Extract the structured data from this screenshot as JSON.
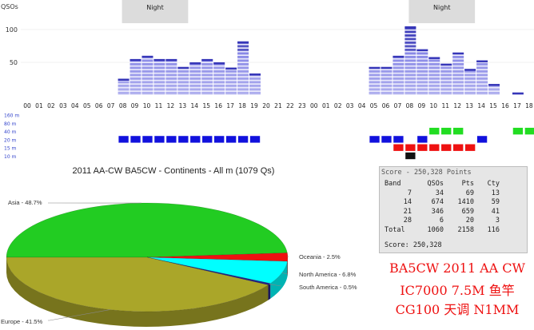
{
  "chart_data": [
    {
      "type": "bar",
      "ylabel": "QSOs",
      "yticks": [
        50,
        100
      ],
      "ylim": [
        0,
        110
      ],
      "hours": [
        "00",
        "01",
        "02",
        "03",
        "04",
        "05",
        "06",
        "07",
        "08",
        "09",
        "10",
        "11",
        "12",
        "13",
        "14",
        "15",
        "16",
        "17",
        "18",
        "19",
        "20",
        "21",
        "22",
        "23"
      ],
      "day1_values": [
        0,
        0,
        0,
        0,
        0,
        0,
        0,
        0,
        25,
        55,
        60,
        55,
        55,
        43,
        50,
        55,
        50,
        42,
        82,
        33,
        0,
        0,
        0,
        0
      ],
      "day2_values": [
        0,
        0,
        0,
        0,
        0,
        43,
        43,
        60,
        105,
        70,
        58,
        48,
        65,
        40,
        53,
        17,
        0,
        4,
        0,
        0,
        0,
        0,
        0,
        0
      ],
      "night_label": "Night",
      "night_day1_hours": [
        8,
        13
      ],
      "night_day2_hours": [
        8,
        13
      ],
      "bar_color": "#6c6ce0",
      "bar_color_top": "#3636b8"
    },
    {
      "type": "heatmap",
      "bands": [
        "160 m",
        "80 m",
        "40 m",
        "20 m",
        "15 m",
        "10 m"
      ],
      "band_colors": {
        "40 m": "#22dd22",
        "20 m": "#1111dd",
        "15 m": "#ee1111",
        "10 m": "#111111"
      },
      "activity": [
        {
          "band": "20 m",
          "day": 1,
          "hours": [
            8,
            9,
            10,
            11,
            12,
            13,
            14,
            15,
            16,
            17,
            18,
            19
          ]
        },
        {
          "band": "20 m",
          "day": 2,
          "hours": [
            5,
            6,
            7,
            9,
            14
          ]
        },
        {
          "band": "40 m",
          "day": 2,
          "hours": [
            10,
            11,
            12,
            17,
            18
          ]
        },
        {
          "band": "15 m",
          "day": 2,
          "hours": [
            7,
            8,
            9,
            10,
            11,
            12,
            13
          ]
        },
        {
          "band": "10 m",
          "day": 2,
          "hours": [
            8
          ]
        }
      ]
    },
    {
      "type": "pie",
      "title": "2011 AA-CW BA5CW - Continents - All m (1079 Qs)",
      "slices": [
        {
          "name": "Asia",
          "label": "Asia - 48.7%",
          "value": 48.7,
          "color": "#22cc22"
        },
        {
          "name": "Oceania",
          "label": "Oceania - 2.5%",
          "value": 2.5,
          "color": "#ee1111"
        },
        {
          "name": "North America",
          "label": "North America - 6.8%",
          "value": 6.8,
          "color": "#00ffff"
        },
        {
          "name": "South America",
          "label": "South America - 0.5%",
          "value": 0.5,
          "color": "#222288"
        },
        {
          "name": "Europe",
          "label": "Europe - 41.5%",
          "value": 41.5,
          "color": "#aaa629"
        }
      ]
    }
  ],
  "score_box": {
    "header": "Score - 250,328 Points",
    "columns": [
      "Band",
      "QSOs",
      "Pts",
      "Cty"
    ],
    "rows": [
      [
        "7",
        "34",
        "69",
        "13"
      ],
      [
        "14",
        "674",
        "1410",
        "59"
      ],
      [
        "21",
        "346",
        "659",
        "41"
      ],
      [
        "28",
        "6",
        "20",
        "3"
      ]
    ],
    "total": [
      "Total",
      "1060",
      "2158",
      "116"
    ],
    "score_line": "Score: 250,328"
  },
  "caption": {
    "line1": "BA5CW 2011 AA CW",
    "line2": "IC7000 7.5M 鱼竿",
    "line3": "CG100 天调 N1MM"
  }
}
